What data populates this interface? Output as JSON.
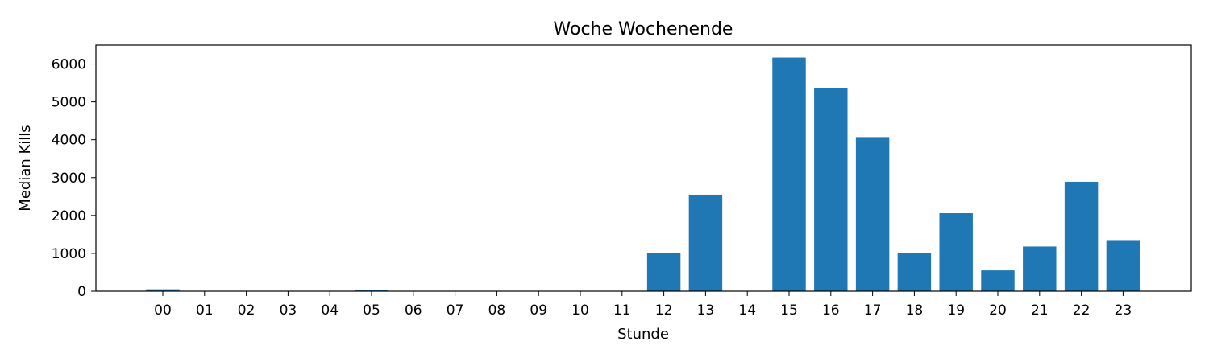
{
  "chart_data": {
    "type": "bar",
    "title": "Woche Wochenende",
    "xlabel": "Stunde",
    "ylabel": "Median Kills",
    "categories": [
      "00",
      "01",
      "02",
      "03",
      "04",
      "05",
      "06",
      "07",
      "08",
      "09",
      "10",
      "11",
      "12",
      "13",
      "14",
      "15",
      "16",
      "17",
      "18",
      "19",
      "20",
      "21",
      "22",
      "23"
    ],
    "values": [
      50,
      0,
      0,
      0,
      0,
      30,
      0,
      0,
      0,
      0,
      0,
      0,
      1000,
      2550,
      0,
      6170,
      5360,
      4070,
      1000,
      2060,
      550,
      1180,
      2890,
      1350
    ],
    "yticks": [
      0,
      1000,
      2000,
      3000,
      4000,
      5000,
      6000
    ],
    "ylim": [
      0,
      6500
    ],
    "grid": false,
    "bar_color": "#1f77b4"
  }
}
